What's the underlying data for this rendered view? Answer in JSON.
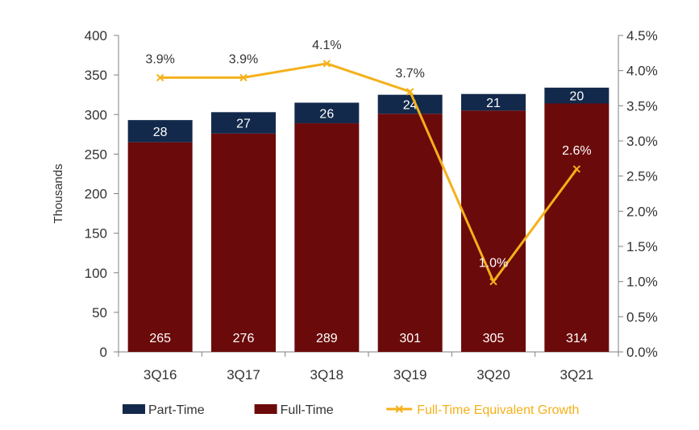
{
  "chart_data": {
    "type": "bar",
    "stacked": true,
    "categories": [
      "3Q16",
      "3Q17",
      "3Q18",
      "3Q19",
      "3Q20",
      "3Q21"
    ],
    "series": [
      {
        "name": "Full-Time",
        "type": "bar",
        "axis": "left",
        "values": [
          265,
          276,
          289,
          301,
          305,
          314
        ],
        "color": "#6b0a0a"
      },
      {
        "name": "Part-Time",
        "type": "bar",
        "axis": "left",
        "values": [
          28,
          27,
          26,
          24,
          21,
          20
        ],
        "color": "#13294b"
      },
      {
        "name": "Full-Time Equivalent Growth",
        "type": "line",
        "axis": "right",
        "values": [
          3.9,
          3.9,
          4.1,
          3.7,
          1.0,
          2.6
        ],
        "labels": [
          "3.9%",
          "3.9%",
          "4.1%",
          "3.7%",
          "1.0%",
          "2.6%"
        ],
        "color": "#f5b01a"
      }
    ],
    "ylabel": "Thousands",
    "ylim": [
      0,
      400
    ],
    "yticks": [
      "0",
      "50",
      "100",
      "150",
      "200",
      "250",
      "300",
      "350",
      "400"
    ],
    "y2lim": [
      0,
      4.5
    ],
    "y2ticks": [
      "0.0%",
      "0.5%",
      "1.0%",
      "1.5%",
      "2.0%",
      "2.5%",
      "3.0%",
      "3.5%",
      "4.0%",
      "4.5%"
    ],
    "grid": false,
    "legend": {
      "placement": "bottom",
      "items": [
        {
          "label": "Part-Time",
          "color": "#13294b",
          "marker": "rect"
        },
        {
          "label": "Full-Time",
          "color": "#6b0a0a",
          "marker": "rect"
        },
        {
          "label": "Full-Time Equivalent Growth",
          "color": "#f5b01a",
          "marker": "line-x"
        }
      ]
    },
    "colors": {
      "axis": "#808080",
      "text": "#333333",
      "bar_label": "#ffffff",
      "growth_label_inside": "#ffffff",
      "growth_label_outside": "#333333"
    }
  }
}
